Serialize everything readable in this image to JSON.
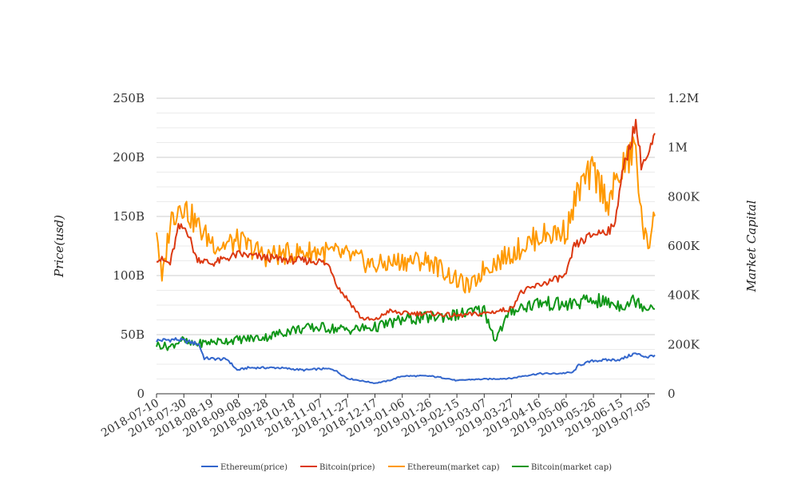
{
  "chart_data": {
    "type": "line",
    "title": "",
    "xlabel": "",
    "ylabel_left": "Price(usd)",
    "ylabel_right": "Market Capital",
    "x_ticks": [
      "2018-07-10",
      "2018-07-30",
      "2018-08-19",
      "2018-09-08",
      "2018-09-28",
      "2018-10-18",
      "2018-11-07",
      "2018-11-27",
      "2018-12-17",
      "2019-01-06",
      "2019-01-26",
      "2019-02-15",
      "2019-03-07",
      "2019-03-27",
      "2019-04-16",
      "2019-05-06",
      "2019-05-26",
      "2019-06-15",
      "2019-07-05"
    ],
    "x_range": [
      "2018-07-10",
      "2019-07-10"
    ],
    "y_left": {
      "ticks": [
        "0",
        "50B",
        "100B",
        "150B",
        "200B",
        "250B"
      ],
      "min": 0,
      "max": 250
    },
    "y_right": {
      "ticks": [
        "0",
        "200K",
        "400K",
        "600K",
        "800K",
        "1M",
        "1.2M"
      ],
      "min": 0,
      "max": 1200
    },
    "grid": true,
    "legend_position": "bottom",
    "series": [
      {
        "name": "Ethereum(price)",
        "axis": "left",
        "color": "#3366cc",
        "x": [
          "2018-07-10",
          "2018-07-25",
          "2018-08-10",
          "2018-08-14",
          "2018-08-31",
          "2018-09-07",
          "2018-09-15",
          "2018-10-07",
          "2018-10-26",
          "2018-11-07",
          "2018-11-16",
          "2018-11-27",
          "2018-12-07",
          "2018-12-17",
          "2018-12-27",
          "2019-01-06",
          "2019-01-26",
          "2019-02-08",
          "2019-02-15",
          "2019-02-24",
          "2019-03-27",
          "2019-04-04",
          "2019-04-16",
          "2019-04-28",
          "2019-05-11",
          "2019-05-15",
          "2019-05-26",
          "2019-06-15",
          "2019-06-25",
          "2019-07-05",
          "2019-07-10"
        ],
        "y": [
          45,
          46,
          42,
          30,
          29,
          20,
          22,
          22,
          20,
          21,
          21,
          13,
          11,
          9,
          11,
          15,
          15,
          13,
          11,
          12,
          13,
          15,
          17,
          17,
          18,
          24,
          28,
          29,
          34,
          31,
          33
        ]
      },
      {
        "name": "Bitcoin(price)",
        "axis": "left",
        "color": "#dc3912",
        "x": [
          "2018-07-10",
          "2018-07-20",
          "2018-07-26",
          "2018-08-01",
          "2018-08-08",
          "2018-08-19",
          "2018-09-08",
          "2018-09-28",
          "2018-10-18",
          "2018-11-07",
          "2018-11-14",
          "2018-11-20",
          "2018-11-27",
          "2018-12-07",
          "2018-12-17",
          "2018-12-27",
          "2019-01-06",
          "2019-01-26",
          "2019-02-15",
          "2019-03-07",
          "2019-03-27",
          "2019-04-02",
          "2019-04-16",
          "2019-05-06",
          "2019-05-12",
          "2019-05-26",
          "2019-06-10",
          "2019-06-15",
          "2019-06-26",
          "2019-06-30",
          "2019-07-05",
          "2019-07-10"
        ],
        "y": [
          115,
          110,
          140,
          140,
          115,
          110,
          118,
          115,
          113,
          112,
          108,
          90,
          80,
          64,
          62,
          70,
          68,
          68,
          66,
          68,
          72,
          85,
          92,
          100,
          125,
          135,
          140,
          180,
          230,
          195,
          200,
          218
        ]
      },
      {
        "name": "Ethereum(market cap)",
        "axis": "right",
        "color": "#ff9900",
        "x": [
          "2018-07-10",
          "2018-07-14",
          "2018-07-20",
          "2018-07-28",
          "2018-08-04",
          "2018-08-15",
          "2018-08-25",
          "2018-09-08",
          "2018-09-28",
          "2018-10-18",
          "2018-11-07",
          "2018-11-27",
          "2018-12-17",
          "2019-01-06",
          "2019-01-26",
          "2019-02-15",
          "2019-02-25",
          "2019-03-07",
          "2019-03-27",
          "2019-04-16",
          "2019-05-06",
          "2019-05-16",
          "2019-05-26",
          "2019-06-06",
          "2019-06-15",
          "2019-06-26",
          "2019-06-30",
          "2019-07-05",
          "2019-07-10"
        ],
        "y": [
          680,
          450,
          700,
          780,
          720,
          640,
          600,
          620,
          560,
          570,
          580,
          560,
          520,
          540,
          540,
          460,
          430,
          510,
          570,
          640,
          660,
          840,
          900,
          780,
          900,
          1000,
          720,
          580,
          780
        ]
      },
      {
        "name": "Bitcoin(market cap)",
        "axis": "right",
        "color": "#109618",
        "x": [
          "2018-07-10",
          "2018-07-20",
          "2018-07-28",
          "2018-08-04",
          "2018-08-19",
          "2018-09-08",
          "2018-09-28",
          "2018-10-18",
          "2018-11-07",
          "2018-11-27",
          "2018-12-17",
          "2019-01-06",
          "2019-01-26",
          "2019-02-15",
          "2019-03-07",
          "2019-03-15",
          "2019-03-27",
          "2019-04-16",
          "2019-05-06",
          "2019-05-26",
          "2019-06-15",
          "2019-06-26",
          "2019-07-05",
          "2019-07-10"
        ],
        "y": [
          200,
          190,
          220,
          200,
          210,
          220,
          230,
          260,
          270,
          260,
          270,
          300,
          310,
          320,
          340,
          220,
          340,
          370,
          360,
          380,
          360,
          380,
          350,
          370
        ]
      }
    ]
  }
}
